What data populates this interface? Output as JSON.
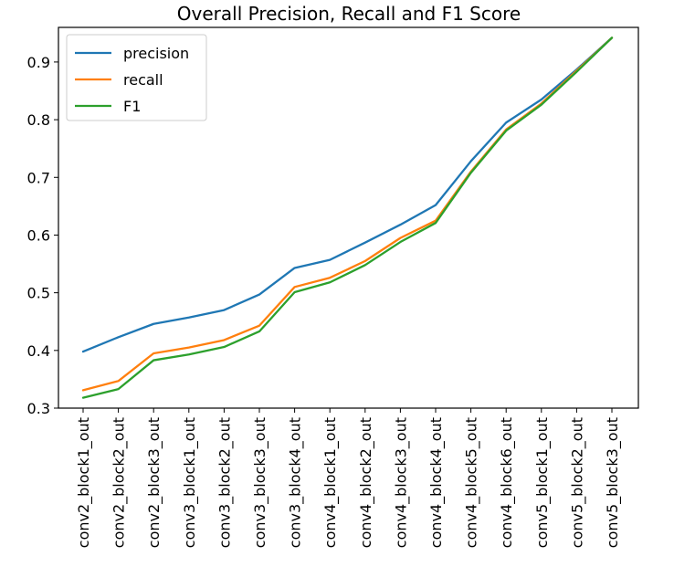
{
  "chart_data": {
    "type": "line",
    "title": "Overall Precision, Recall and F1 Score",
    "xlabel": "",
    "ylabel": "",
    "categories": [
      "conv2_block1_out",
      "conv2_block2_out",
      "conv2_block3_out",
      "conv3_block1_out",
      "conv3_block2_out",
      "conv3_block3_out",
      "conv3_block4_out",
      "conv4_block1_out",
      "conv4_block2_out",
      "conv4_block3_out",
      "conv4_block4_out",
      "conv4_block5_out",
      "conv4_block6_out",
      "conv5_block1_out",
      "conv5_block2_out",
      "conv5_block3_out"
    ],
    "series": [
      {
        "name": "precision",
        "color": "#1f77b4",
        "values": [
          0.398,
          0.423,
          0.446,
          0.457,
          0.47,
          0.497,
          0.543,
          0.557,
          0.587,
          0.618,
          0.652,
          0.728,
          0.795,
          0.835,
          0.887,
          0.942
        ]
      },
      {
        "name": "recall",
        "color": "#ff7f0e",
        "values": [
          0.331,
          0.347,
          0.395,
          0.405,
          0.418,
          0.443,
          0.51,
          0.526,
          0.555,
          0.595,
          0.625,
          0.71,
          0.783,
          0.828,
          0.885,
          0.942
        ]
      },
      {
        "name": "F1",
        "color": "#2ca02c",
        "values": [
          0.318,
          0.333,
          0.383,
          0.393,
          0.406,
          0.433,
          0.501,
          0.518,
          0.548,
          0.588,
          0.621,
          0.708,
          0.781,
          0.826,
          0.883,
          0.942
        ]
      }
    ],
    "ylim": [
      0.3,
      0.96
    ],
    "yticks": [
      "0.3",
      "0.4",
      "0.5",
      "0.6",
      "0.7",
      "0.8",
      "0.9"
    ],
    "grid": false,
    "legend_position": "upper-left"
  }
}
